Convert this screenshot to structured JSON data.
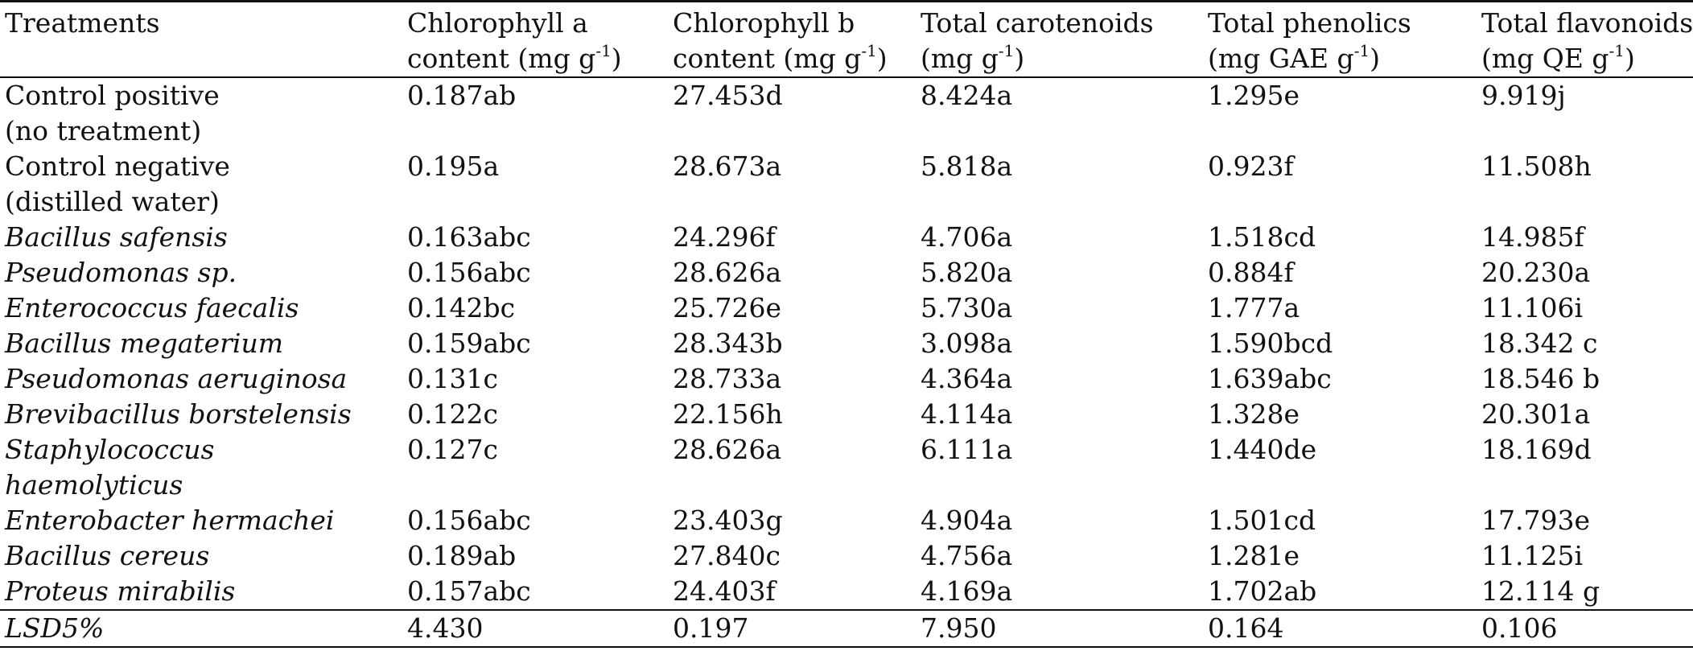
{
  "headers": [
    {
      "line1": "Treatments",
      "line2": "",
      "unit_pre": "",
      "unit_sup": "",
      "unit_post": ""
    },
    {
      "line1": "Chlorophyll a",
      "line2": "",
      "unit_pre": "content (mg g",
      "unit_sup": "-1",
      "unit_post": ")"
    },
    {
      "line1": "Chlorophyll b",
      "line2": "",
      "unit_pre": "content (mg g",
      "unit_sup": "-1",
      "unit_post": ")"
    },
    {
      "line1": "Total carotenoids",
      "line2": "",
      "unit_pre": "(mg g",
      "unit_sup": "-1",
      "unit_post": ")"
    },
    {
      "line1": "Total phenolics",
      "line2": "",
      "unit_pre": "(mg GAE g",
      "unit_sup": "-1",
      "unit_post": ")"
    },
    {
      "line1": "Total flavonoids",
      "line2": "",
      "unit_pre": "(mg QE g",
      "unit_sup": "-1",
      "unit_post": ")"
    }
  ],
  "rows": [
    {
      "name": "Control positive",
      "name2": "(no treatment)",
      "italic": false,
      "values": [
        "0.187ab",
        "27.453d",
        "8.424a",
        "1.295e",
        "9.919j"
      ]
    },
    {
      "name": "Control negative",
      "name2": "(distilled water)",
      "italic": false,
      "values": [
        "0.195a",
        "28.673a",
        "5.818a",
        "0.923f",
        "11.508h"
      ]
    },
    {
      "name": "Bacillus safensis",
      "name2": "",
      "italic": true,
      "values": [
        "0.163abc",
        "24.296f",
        "4.706a",
        "1.518cd",
        "14.985f"
      ]
    },
    {
      "name": "Pseudomonas sp.",
      "name2": "",
      "italic": true,
      "values": [
        "0.156abc",
        "28.626a",
        "5.820a",
        "0.884f",
        "20.230a"
      ]
    },
    {
      "name": "Enterococcus faecalis",
      "name2": "",
      "italic": true,
      "values": [
        "0.142bc",
        "25.726e",
        "5.730a",
        "1.777a",
        "11.106i"
      ]
    },
    {
      "name": "Bacillus megaterium",
      "name2": "",
      "italic": true,
      "values": [
        "0.159abc",
        "28.343b",
        "3.098a",
        "1.590bcd",
        "18.342 c"
      ]
    },
    {
      "name": "Pseudomonas aeruginosa",
      "name2": "",
      "italic": true,
      "values": [
        "0.131c",
        "28.733a",
        "4.364a",
        "1.639abc",
        "18.546 b"
      ]
    },
    {
      "name": "Brevibacillus borstelensis",
      "name2": "",
      "italic": true,
      "values": [
        "0.122c",
        "22.156h",
        "4.114a",
        "1.328e",
        "20.301a"
      ]
    },
    {
      "name": "Staphylococcus",
      "name2": "haemolyticus",
      "italic": true,
      "values": [
        "0.127c",
        "28.626a",
        "6.111a",
        "1.440de",
        "18.169d"
      ]
    },
    {
      "name": "Enterobacter hermachei",
      "name2": "",
      "italic": true,
      "values": [
        "0.156abc",
        "23.403g",
        "4.904a",
        "1.501cd",
        "17.793e"
      ]
    },
    {
      "name": "Bacillus cereus",
      "name2": "",
      "italic": true,
      "values": [
        "0.189ab",
        "27.840c",
        "4.756a",
        "1.281e",
        "11.125i"
      ]
    },
    {
      "name": "Proteus mirabilis",
      "name2": "",
      "italic": true,
      "values": [
        "0.157abc",
        "24.403f",
        "4.169a",
        "1.702ab",
        "12.114 g"
      ]
    }
  ],
  "lsd": {
    "name": "LSD5%",
    "values": [
      "4.430",
      "0.197",
      "7.950",
      "0.164",
      "0.106"
    ]
  }
}
